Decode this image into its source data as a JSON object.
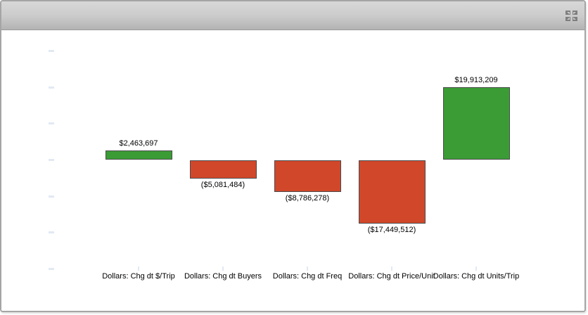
{
  "window": {
    "header_icon": "maximize-widget-icon"
  },
  "chart_data": {
    "type": "bar",
    "title": "",
    "xlabel": "",
    "ylabel": "",
    "categories": [
      "Dollars: Chg dt $/Trip",
      "Dollars: Chg dt Buyers",
      "Dollars: Chg dt Freq",
      "Dollars: Chg dt Price/Unit",
      "Dollars: Chg dt Units/Trip"
    ],
    "values": [
      2463697,
      -5081484,
      -8786278,
      -17449512,
      19913209
    ],
    "value_labels": [
      "$2,463,697",
      "($5,081,484)",
      "($8,786,278)",
      "($17,449,512)",
      "$19,913,209"
    ],
    "ylim": [
      -30000000,
      30000000
    ],
    "ytick_interval": 10000000,
    "grid": false,
    "legend": null,
    "colors": {
      "positive": "#3b9c35",
      "negative": "#d1472a",
      "bar_border": "#4c4c4c",
      "axis_tick": "#e2e9f3"
    }
  }
}
